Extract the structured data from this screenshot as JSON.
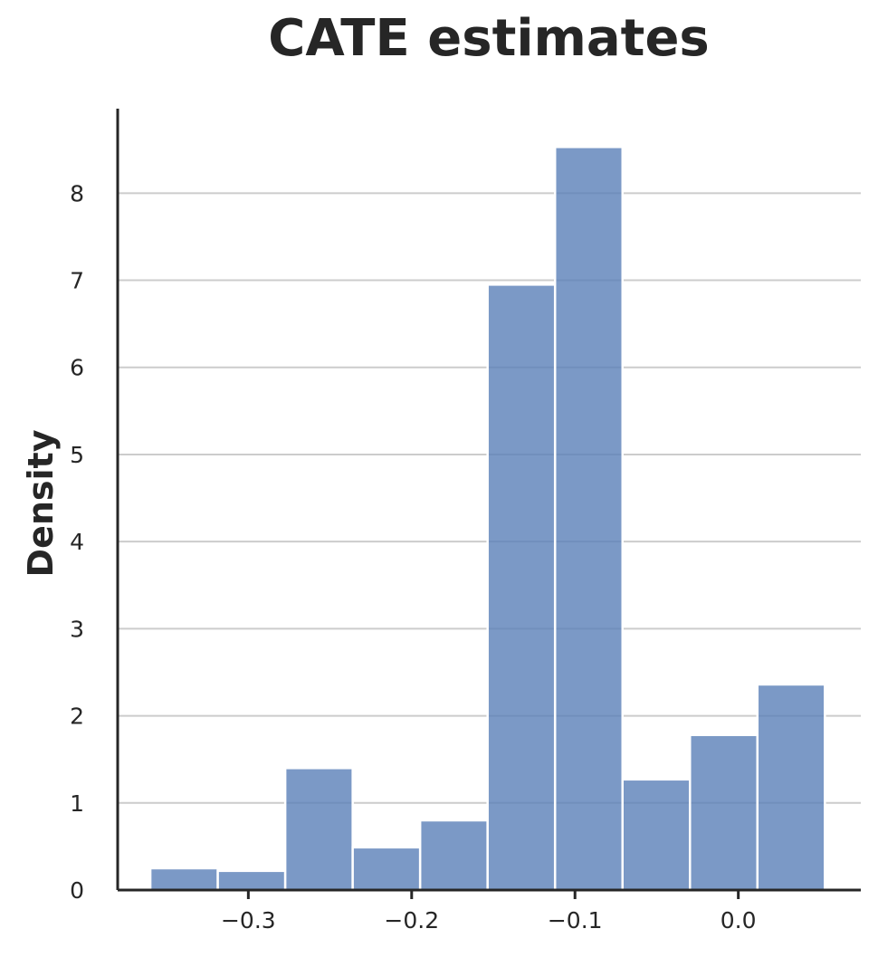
{
  "chart_data": {
    "type": "bar",
    "title": "CATE estimates",
    "xlabel": "",
    "ylabel": "Density",
    "xlim": [
      -0.38,
      0.075
    ],
    "ylim": [
      0,
      8.97
    ],
    "x_ticks": [
      -0.3,
      -0.2,
      -0.1,
      0.0
    ],
    "x_tick_labels": [
      "−0.3",
      "−0.2",
      "−0.1",
      "0.0"
    ],
    "y_ticks": [
      0,
      1,
      2,
      3,
      4,
      5,
      6,
      7,
      8
    ],
    "y_tick_labels": [
      "0",
      "1",
      "2",
      "3",
      "4",
      "5",
      "6",
      "7",
      "8"
    ],
    "grid": "horizontal",
    "bins": [
      {
        "x0": -0.36,
        "x1": -0.3187,
        "density": 0.25
      },
      {
        "x0": -0.3187,
        "x1": -0.2774,
        "density": 0.22
      },
      {
        "x0": -0.2774,
        "x1": -0.2361,
        "density": 1.4
      },
      {
        "x0": -0.2361,
        "x1": -0.1948,
        "density": 0.49
      },
      {
        "x0": -0.1948,
        "x1": -0.1535,
        "density": 0.8
      },
      {
        "x0": -0.1535,
        "x1": -0.1122,
        "density": 6.95
      },
      {
        "x0": -0.1122,
        "x1": -0.0709,
        "density": 8.53
      },
      {
        "x0": -0.0709,
        "x1": -0.0296,
        "density": 1.27
      },
      {
        "x0": -0.0296,
        "x1": 0.0117,
        "density": 1.78
      },
      {
        "x0": 0.0117,
        "x1": 0.053,
        "density": 2.36
      }
    ],
    "colors": {
      "bar": "#5a7fb8",
      "grid": "#cccccc",
      "axis": "#262626"
    }
  }
}
